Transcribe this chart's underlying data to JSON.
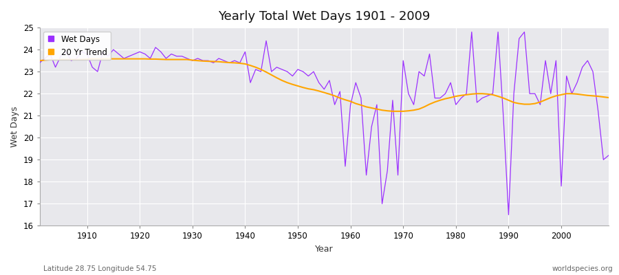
{
  "title": "Yearly Total Wet Days 1901 - 2009",
  "xlabel": "Year",
  "ylabel": "Wet Days",
  "subtitle_left": "Latitude 28.75 Longitude 54.75",
  "subtitle_right": "worldspecies.org",
  "legend_labels": [
    "Wet Days",
    "20 Yr Trend"
  ],
  "wet_days_color": "#9B30FF",
  "trend_color": "#FFA500",
  "bg_color": "#FFFFFF",
  "plot_bg_color": "#E8E8EC",
  "ylim": [
    16,
    25
  ],
  "xlim": [
    1901,
    2009
  ],
  "yticks": [
    16,
    17,
    18,
    19,
    20,
    21,
    22,
    23,
    24,
    25
  ],
  "xticks": [
    1910,
    1920,
    1930,
    1940,
    1950,
    1960,
    1970,
    1980,
    1990,
    2000
  ],
  "years": [
    1901,
    1902,
    1903,
    1904,
    1905,
    1906,
    1907,
    1908,
    1909,
    1910,
    1911,
    1912,
    1913,
    1914,
    1915,
    1916,
    1917,
    1918,
    1919,
    1920,
    1921,
    1922,
    1923,
    1924,
    1925,
    1926,
    1927,
    1928,
    1929,
    1930,
    1931,
    1932,
    1933,
    1934,
    1935,
    1936,
    1937,
    1938,
    1939,
    1940,
    1941,
    1942,
    1943,
    1944,
    1945,
    1946,
    1947,
    1948,
    1949,
    1950,
    1951,
    1952,
    1953,
    1954,
    1955,
    1956,
    1957,
    1958,
    1959,
    1960,
    1961,
    1962,
    1963,
    1964,
    1965,
    1966,
    1967,
    1968,
    1969,
    1970,
    1971,
    1972,
    1973,
    1974,
    1975,
    1976,
    1977,
    1978,
    1979,
    1980,
    1981,
    1982,
    1983,
    1984,
    1985,
    1986,
    1987,
    1988,
    1989,
    1990,
    1991,
    1992,
    1993,
    1994,
    1995,
    1996,
    1997,
    1998,
    1999,
    2000,
    2001,
    2002,
    2003,
    2004,
    2005,
    2006,
    2007,
    2008,
    2009
  ],
  "wet_days": [
    23.4,
    23.6,
    23.8,
    23.2,
    23.7,
    23.9,
    23.5,
    23.6,
    23.9,
    23.8,
    23.2,
    23.0,
    23.9,
    23.7,
    24.0,
    23.8,
    23.6,
    23.7,
    23.8,
    23.9,
    23.8,
    23.6,
    24.1,
    23.9,
    23.6,
    23.8,
    23.7,
    23.7,
    23.6,
    23.5,
    23.6,
    23.5,
    23.5,
    23.4,
    23.6,
    23.5,
    23.4,
    23.5,
    23.4,
    23.9,
    22.5,
    23.1,
    23.0,
    24.4,
    23.0,
    23.2,
    23.1,
    23.0,
    22.8,
    23.1,
    23.0,
    22.8,
    23.0,
    22.5,
    22.2,
    22.6,
    21.5,
    22.1,
    18.7,
    21.5,
    22.5,
    21.8,
    18.3,
    20.5,
    21.5,
    17.0,
    18.5,
    21.7,
    18.3,
    23.5,
    22.0,
    21.5,
    23.0,
    22.8,
    23.8,
    21.8,
    21.8,
    22.0,
    22.5,
    21.5,
    21.8,
    22.0,
    24.8,
    21.6,
    21.8,
    21.9,
    22.0,
    24.8,
    21.0,
    16.5,
    22.0,
    24.5,
    24.8,
    22.0,
    22.0,
    21.5,
    23.5,
    22.0,
    23.5,
    17.8,
    22.8,
    22.0,
    22.5,
    23.2,
    23.5,
    23.0,
    21.2,
    19.0,
    19.2
  ],
  "trend_years": [
    1901,
    1902,
    1903,
    1904,
    1905,
    1906,
    1907,
    1908,
    1909,
    1910,
    1911,
    1912,
    1913,
    1914,
    1915,
    1916,
    1917,
    1918,
    1919,
    1920,
    1921,
    1922,
    1923,
    1924,
    1925,
    1926,
    1927,
    1928,
    1929,
    1930,
    1931,
    1932,
    1933,
    1934,
    1935,
    1936,
    1937,
    1938,
    1939,
    1940,
    1941,
    1942,
    1943,
    1944,
    1945,
    1946,
    1947,
    1948,
    1949,
    1950,
    1951,
    1952,
    1953,
    1954,
    1955,
    1956,
    1957,
    1958,
    1959,
    1960,
    1961,
    1962,
    1963,
    1964,
    1965,
    1966,
    1967,
    1968,
    1969,
    1970,
    1971,
    1972,
    1973,
    1974,
    1975,
    1976,
    1977,
    1978,
    1979,
    1980,
    1981,
    1982,
    1983,
    1984,
    1985,
    1986,
    1987,
    1988,
    1989,
    1990,
    1991,
    1992,
    1993,
    1994,
    1995,
    1996,
    1997,
    1998,
    1999,
    2000,
    2001,
    2002,
    2003,
    2004,
    2005,
    2006,
    2007,
    2008,
    2009
  ],
  "trend_values": [
    23.5,
    23.52,
    23.54,
    23.54,
    23.55,
    23.55,
    23.55,
    23.55,
    23.55,
    23.57,
    23.58,
    23.58,
    23.58,
    23.58,
    23.58,
    23.58,
    23.58,
    23.58,
    23.58,
    23.58,
    23.58,
    23.57,
    23.57,
    23.56,
    23.55,
    23.55,
    23.55,
    23.55,
    23.55,
    23.52,
    23.5,
    23.48,
    23.47,
    23.46,
    23.45,
    23.43,
    23.41,
    23.4,
    23.38,
    23.35,
    23.28,
    23.2,
    23.1,
    22.98,
    22.85,
    22.72,
    22.6,
    22.5,
    22.42,
    22.35,
    22.28,
    22.22,
    22.18,
    22.12,
    22.05,
    21.98,
    21.9,
    21.8,
    21.72,
    21.65,
    21.55,
    21.48,
    21.4,
    21.35,
    21.3,
    21.25,
    21.22,
    21.2,
    21.2,
    21.2,
    21.22,
    21.25,
    21.3,
    21.4,
    21.52,
    21.62,
    21.7,
    21.77,
    21.82,
    21.88,
    21.92,
    21.95,
    21.98,
    22.0,
    22.0,
    21.98,
    21.95,
    21.88,
    21.8,
    21.7,
    21.6,
    21.55,
    21.52,
    21.52,
    21.55,
    21.62,
    21.72,
    21.82,
    21.9,
    21.95,
    22.0,
    22.0,
    21.98,
    21.95,
    21.92,
    21.9,
    21.88,
    21.85,
    21.82
  ]
}
